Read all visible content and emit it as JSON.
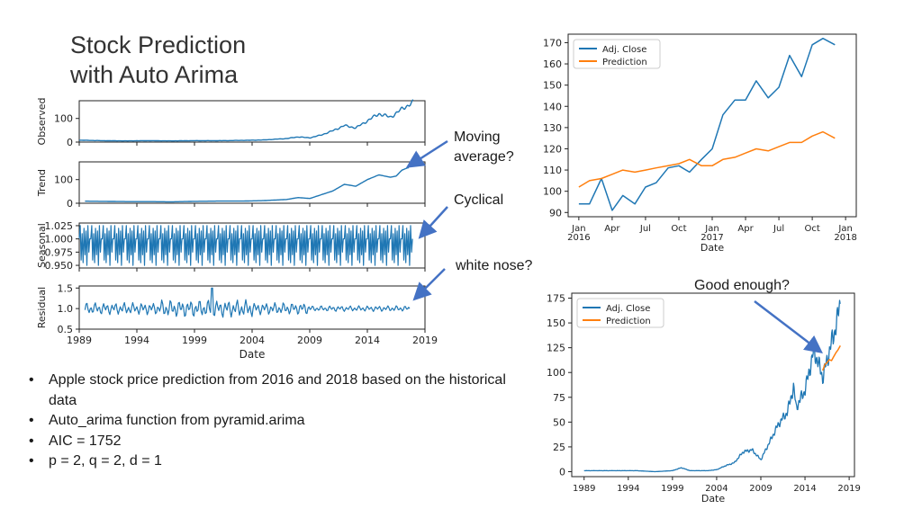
{
  "slide": {
    "title_line1": "Stock Prediction",
    "title_line2": "with Auto Arima",
    "bullets": [
      "Apple stock price prediction from 2016 and 2018 based on the historical data",
      "Auto_arima function from pyramid.arima",
      "AIC = 1752",
      "p = 2, q = 2, d = 1"
    ],
    "annotations": {
      "moving_line1": "Moving",
      "moving_line2": "average?",
      "cyclical": "Cyclical",
      "white_nose": "white nose?",
      "good_enough": "Good enough?"
    },
    "colors": {
      "series_blue": "#1f77b4",
      "series_orange": "#ff7f0e",
      "arrow": "#4472c4"
    }
  },
  "chart_data": [
    {
      "type": "line",
      "panel": "decomposition-observed",
      "ylabel": "Observed",
      "yticks": [
        0,
        100
      ],
      "x": [
        1989,
        1991,
        1993,
        1995,
        1997,
        1999,
        2001,
        2003,
        2005,
        2007,
        2008,
        2009,
        2010,
        2011,
        2012,
        2013,
        2014,
        2015,
        2016,
        2017,
        2018
      ],
      "values": [
        8,
        6,
        5,
        6,
        5,
        6,
        6,
        7,
        9,
        15,
        22,
        18,
        30,
        48,
        70,
        60,
        90,
        120,
        105,
        140,
        170
      ],
      "ylim": [
        0,
        175
      ],
      "xlim": [
        1989,
        2019
      ]
    },
    {
      "type": "line",
      "panel": "decomposition-trend",
      "ylabel": "Trend",
      "yticks": [
        0,
        100
      ],
      "x": [
        1989,
        1991,
        1993,
        1995,
        1997,
        1999,
        2001,
        2003,
        2005,
        2007,
        2008,
        2009,
        2010,
        2011,
        2012,
        2013,
        2014,
        2015,
        2016,
        2016.5,
        2017,
        2017.5
      ],
      "values": [
        9,
        8,
        7,
        7,
        6,
        8,
        9,
        9,
        11,
        16,
        24,
        20,
        36,
        52,
        80,
        72,
        100,
        120,
        110,
        115,
        140,
        150
      ],
      "ylim": [
        0,
        175
      ],
      "xlim": [
        1989,
        2019
      ]
    },
    {
      "type": "line",
      "panel": "decomposition-seasonal",
      "ylabel": "Seasonal",
      "yticks": [
        1.025,
        1.0,
        0.975,
        0.95
      ],
      "pattern": "yearly oscillation repeating from 1989 to 2018 between about 0.95 and 1.025",
      "ylim": [
        0.945,
        1.03
      ],
      "xlim": [
        1989,
        2019
      ]
    },
    {
      "type": "line",
      "panel": "decomposition-residual",
      "ylabel": "Residual",
      "yticks": [
        1.5,
        1.0,
        0.5
      ],
      "pattern": "noisy fluctuation around 1.0 from 1989 to 2018, spike near 2000",
      "ylim": [
        0.5,
        1.55
      ],
      "xlim": [
        1989,
        2019
      ]
    },
    {
      "type": "line",
      "panel": "shared-x-axis",
      "xlabel": "Date",
      "xticks": [
        "1989",
        "1994",
        "1999",
        "2004",
        "2009",
        "2014",
        "2019"
      ]
    },
    {
      "type": "line",
      "panel": "prediction-zoom",
      "xlabel": "Date",
      "xticks": [
        "Jan\n2016",
        "Apr",
        "Jul",
        "Oct",
        "Jan\n2017",
        "Apr",
        "Jul",
        "Oct",
        "Jan\n2018"
      ],
      "yticks": [
        90,
        100,
        110,
        120,
        130,
        140,
        150,
        160,
        170
      ],
      "ylim": [
        88,
        174
      ],
      "legend": "top-left",
      "series": [
        {
          "name": "Adj. Close",
          "x": [
            2016.0,
            2016.08,
            2016.17,
            2016.25,
            2016.33,
            2016.42,
            2016.5,
            2016.58,
            2016.67,
            2016.75,
            2016.83,
            2016.92,
            2017.0,
            2017.08,
            2017.17,
            2017.25,
            2017.33,
            2017.42,
            2017.5,
            2017.58,
            2017.67,
            2017.75,
            2017.83,
            2017.92
          ],
          "values": [
            94,
            94,
            106,
            91,
            98,
            94,
            102,
            104,
            111,
            112,
            109,
            115,
            120,
            136,
            143,
            143,
            152,
            144,
            149,
            164,
            154,
            169,
            172,
            169
          ]
        },
        {
          "name": "Prediction",
          "x": [
            2016.0,
            2016.08,
            2016.17,
            2016.25,
            2016.33,
            2016.42,
            2016.5,
            2016.58,
            2016.67,
            2016.75,
            2016.83,
            2016.92,
            2017.0,
            2017.08,
            2017.17,
            2017.25,
            2017.33,
            2017.42,
            2017.5,
            2017.58,
            2017.67,
            2017.75,
            2017.83,
            2017.92
          ],
          "values": [
            102,
            105,
            106,
            108,
            110,
            109,
            110,
            111,
            112,
            113,
            115,
            112,
            112,
            115,
            116,
            118,
            120,
            119,
            121,
            123,
            123,
            126,
            128,
            125
          ]
        }
      ]
    },
    {
      "type": "line",
      "panel": "prediction-full",
      "xlabel": "Date",
      "xticks": [
        "1989",
        "1994",
        "1999",
        "2004",
        "2009",
        "2014",
        "2019"
      ],
      "yticks": [
        0,
        25,
        50,
        75,
        100,
        125,
        150,
        175
      ],
      "ylim": [
        -5,
        180
      ],
      "legend": "top-left",
      "series": [
        {
          "name": "Adj. Close",
          "x": [
            1989,
            1991,
            1993,
            1995,
            1997,
            1999,
            2000,
            2001,
            2003,
            2004,
            2005,
            2006,
            2007,
            2008,
            2009,
            2010,
            2011,
            2012,
            2012.7,
            2013,
            2014,
            2015,
            2015.5,
            2016,
            2016.3,
            2017,
            2017.6,
            2018
          ],
          "values": [
            1,
            1,
            1,
            1,
            0,
            1,
            4,
            1,
            1,
            2,
            6,
            9,
            20,
            22,
            12,
            30,
            48,
            60,
            85,
            65,
            82,
            122,
            110,
            95,
            105,
            130,
            150,
            172
          ]
        },
        {
          "name": "Prediction",
          "x": [
            2016,
            2016.25,
            2016.5,
            2016.75,
            2017,
            2017.25,
            2017.5,
            2017.75,
            2018
          ],
          "values": [
            102,
            108,
            110,
            113,
            112,
            116,
            120,
            123,
            127
          ]
        }
      ]
    }
  ]
}
